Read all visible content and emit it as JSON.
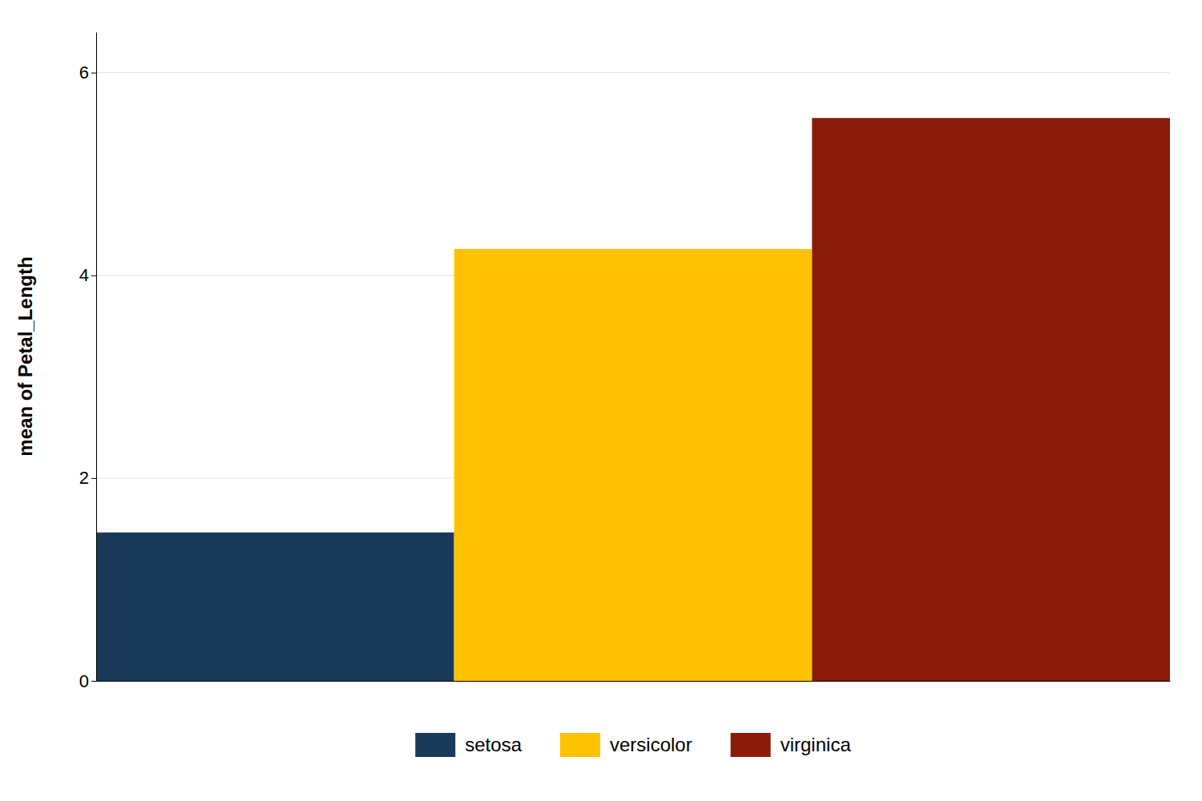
{
  "chart_data": {
    "type": "bar",
    "categories": [
      "setosa",
      "versicolor",
      "virginica"
    ],
    "values": [
      1.464,
      4.26,
      5.552
    ],
    "colors": [
      "#1a3a5c",
      "#ffc200",
      "#8b1a0a"
    ],
    "ylabel": "mean of Petal_Length",
    "ylim": [
      0,
      6.4
    ],
    "yticks": [
      0,
      2,
      4,
      6
    ],
    "grid": true,
    "legend": "bottom",
    "tick_labels": "y"
  }
}
